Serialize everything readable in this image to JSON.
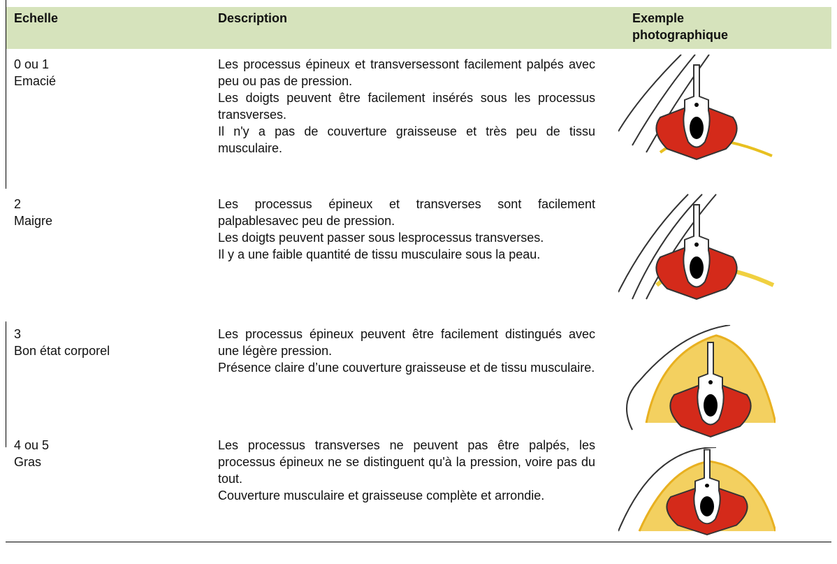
{
  "table": {
    "columns": [
      "Echelle",
      "Description",
      "Exemple photographique"
    ],
    "rows": [
      {
        "score": "0 ou 1",
        "label": "Emacié",
        "description": [
          "Les processus épineux et  transversessont facilement palpés avec peu ou pas de pression.",
          "Les doigts peuvent être facilement insérés sous les processus transverses.",
          "Il n'y a pas de couverture graisseuse et très peu de tissu musculaire."
        ]
      },
      {
        "score": "2",
        "label": "Maigre",
        "description": [
          "Les processus épineux et transverses sont facilement palpablesavec peu de pression.",
          "Les doigts peuvent passer sous lesprocessus transverses.",
          "Il y a une faible quantité de tissu musculaire sous la peau."
        ]
      },
      {
        "score": "3",
        "label": "Bon état corporel",
        "description": [
          "Les processus épineux peuvent être facilement distingués avec une légère pression.",
          "Présence claire d’une couverture graisseuse et de tissu musculaire."
        ]
      },
      {
        "score": "4 ou 5",
        "label": "Gras",
        "description": [
          "Les processus transverses ne peuvent pas être palpés, les processus épineux ne se distinguent qu'à la pression, voire pas du tout.",
          "Couverture musculaire et graisseuse complète et arrondie."
        ]
      }
    ]
  }
}
